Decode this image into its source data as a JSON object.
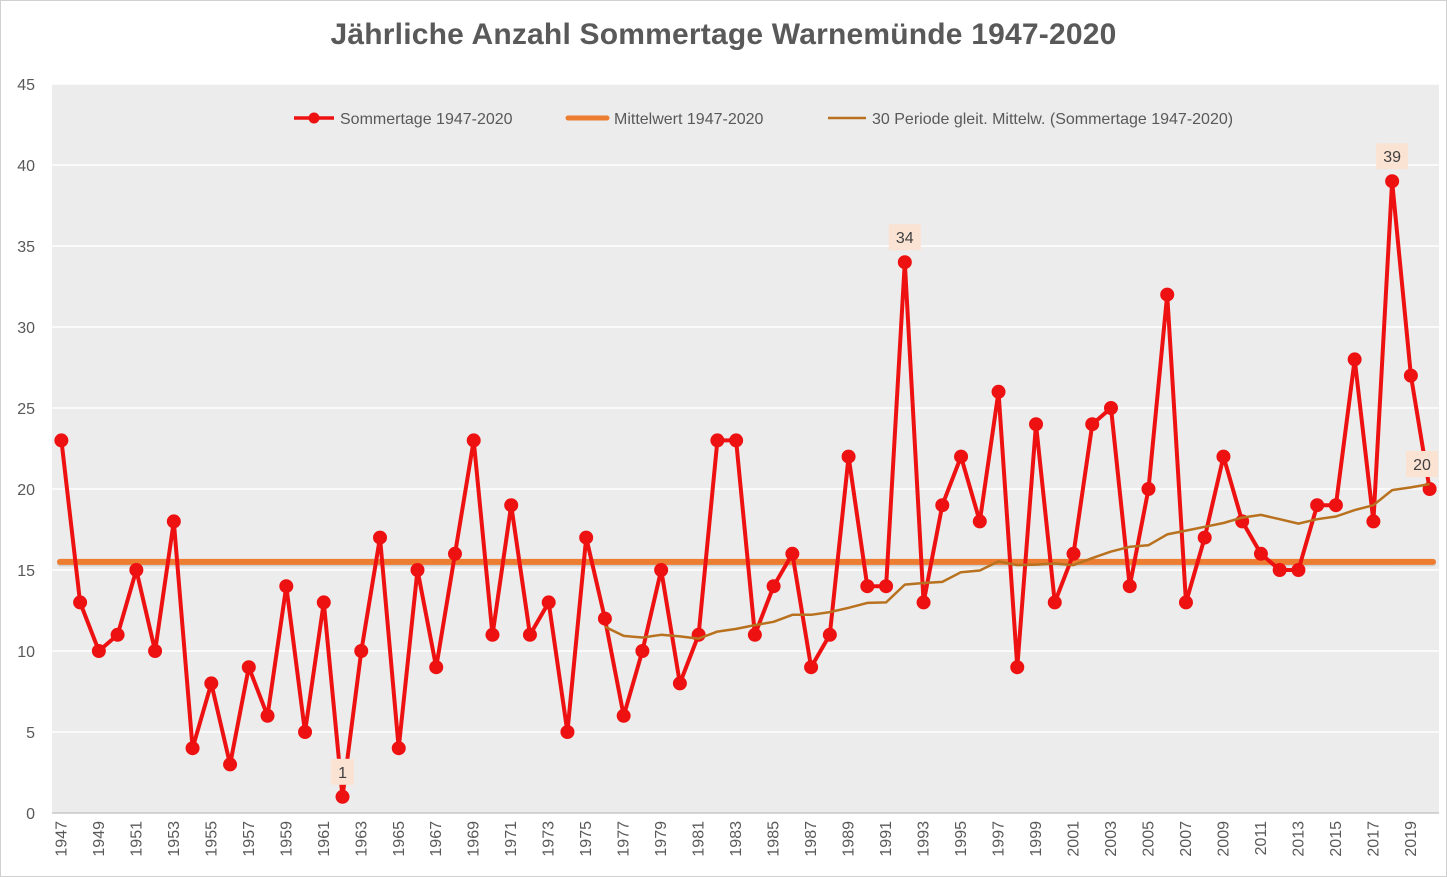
{
  "chart_data": {
    "type": "line",
    "title": "Jährliche Anzahl Sommertage Warnemünde 1947-2020",
    "xlabel": "",
    "ylabel": "",
    "ylim": [
      0,
      45
    ],
    "yticks": [
      0,
      5,
      10,
      15,
      20,
      25,
      30,
      35,
      40,
      45
    ],
    "grid": true,
    "legend_position": "top",
    "x": [
      1947,
      1948,
      1949,
      1950,
      1951,
      1952,
      1953,
      1954,
      1955,
      1956,
      1957,
      1958,
      1959,
      1960,
      1961,
      1962,
      1963,
      1964,
      1965,
      1966,
      1967,
      1968,
      1969,
      1970,
      1971,
      1972,
      1973,
      1974,
      1975,
      1976,
      1977,
      1978,
      1979,
      1980,
      1981,
      1982,
      1983,
      1984,
      1985,
      1986,
      1987,
      1988,
      1989,
      1990,
      1991,
      1992,
      1993,
      1994,
      1995,
      1996,
      1997,
      1998,
      1999,
      2000,
      2001,
      2002,
      2003,
      2004,
      2005,
      2006,
      2007,
      2008,
      2009,
      2010,
      2011,
      2012,
      2013,
      2014,
      2015,
      2016,
      2017,
      2018,
      2019,
      2020
    ],
    "xtick_labels": [
      "1947",
      "1949",
      "1951",
      "1953",
      "1955",
      "1957",
      "1959",
      "1961",
      "1963",
      "1965",
      "1967",
      "1969",
      "1971",
      "1973",
      "1975",
      "1977",
      "1979",
      "1981",
      "1983",
      "1985",
      "1987",
      "1989",
      "1991",
      "1993",
      "1995",
      "1997",
      "1999",
      "2001",
      "2003",
      "2005",
      "2007",
      "2009",
      "2011",
      "2013",
      "2015",
      "2017",
      "2019"
    ],
    "series": [
      {
        "name": "Sommertage 1947-2020",
        "kind": "line-markers",
        "color": "#ee1111",
        "values": [
          23,
          13,
          10,
          11,
          15,
          10,
          18,
          4,
          8,
          3,
          9,
          6,
          14,
          5,
          13,
          1,
          10,
          17,
          4,
          15,
          9,
          16,
          23,
          11,
          19,
          11,
          13,
          5,
          17,
          12,
          6,
          10,
          15,
          8,
          11,
          23,
          23,
          11,
          14,
          16,
          9,
          11,
          22,
          14,
          14,
          34,
          13,
          19,
          22,
          18,
          26,
          9,
          24,
          13,
          16,
          24,
          25,
          14,
          20,
          32,
          13,
          17,
          22,
          18,
          16,
          15,
          15,
          19,
          19,
          28,
          18,
          39,
          27,
          20
        ]
      },
      {
        "name": "Mittelwert 1947-2020",
        "kind": "constant",
        "color": "#ed7d31",
        "value": 15.5
      },
      {
        "name": "30 Periode gleit. Mittelw. (Sommertage 1947-2020)",
        "kind": "moving-average",
        "color": "#b8711e",
        "period": 30
      }
    ],
    "annotations": [
      {
        "year": 1962,
        "value": 1,
        "label": "1",
        "position": "above"
      },
      {
        "year": 1992,
        "value": 34,
        "label": "34",
        "position": "above"
      },
      {
        "year": 2018,
        "value": 39,
        "label": "39",
        "position": "above"
      },
      {
        "year": 2020,
        "value": 20,
        "label": "20",
        "position": "above"
      }
    ]
  }
}
